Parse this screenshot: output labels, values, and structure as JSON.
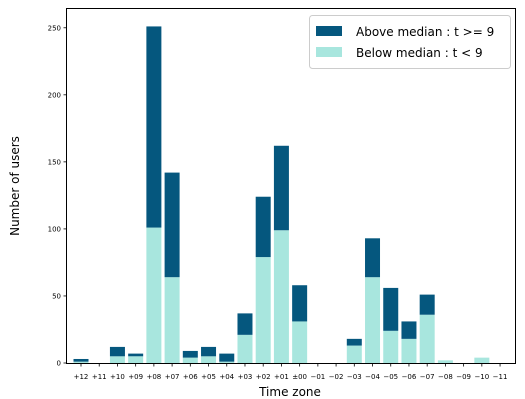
{
  "chart_data": {
    "type": "bar",
    "stacked": true,
    "categories": [
      "+12",
      "+11",
      "+10",
      "+09",
      "+08",
      "+07",
      "+06",
      "+05",
      "+04",
      "+03",
      "+02",
      "+01",
      "±00",
      "−01",
      "−02",
      "−03",
      "−04",
      "−05",
      "−06",
      "−07",
      "−08",
      "−09",
      "−10",
      "−11"
    ],
    "series": [
      {
        "name": "Below median : t < 9",
        "color": "#a8e6de",
        "values": [
          1,
          0,
          5,
          5,
          101,
          64,
          4,
          5,
          1,
          21,
          79,
          99,
          31,
          0,
          0,
          13,
          64,
          24,
          18,
          36,
          2,
          0,
          4,
          0
        ]
      },
      {
        "name": "Above median : t >= 9",
        "color": "#05577e",
        "values": [
          2,
          0,
          7,
          2,
          150,
          78,
          5,
          7,
          6,
          16,
          45,
          63,
          27,
          0,
          0,
          5,
          29,
          32,
          13,
          15,
          0,
          0,
          0,
          0
        ]
      }
    ],
    "xlabel": "Time zone",
    "ylabel": "Number of users",
    "ylim": [
      0,
      264
    ],
    "yticks": [
      0,
      50,
      100,
      150,
      200,
      250
    ],
    "legend": {
      "position": "top-right",
      "entries": [
        {
          "label": "Above median : t >= 9",
          "color": "#05577e"
        },
        {
          "label": "Below median : t < 9",
          "color": "#a8e6de"
        }
      ]
    },
    "grid": false
  }
}
